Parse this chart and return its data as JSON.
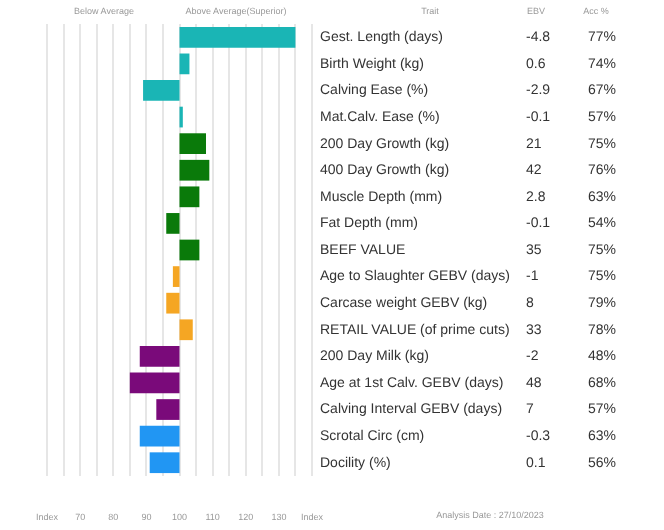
{
  "chart_data": {
    "type": "bar",
    "orientation": "horizontal",
    "legend": false,
    "grid": "x",
    "categories": [
      "Gest. Length (days)",
      "Birth Weight (kg)",
      "Calving Ease (%)",
      "Mat.Calv. Ease (%)",
      "200 Day Growth (kg)",
      "400 Day Growth (kg)",
      "Muscle Depth (mm)",
      "Fat Depth (mm)",
      "BEEF VALUE",
      "Age to Slaughter GEBV (days)",
      "Carcase weight GEBV (kg)",
      "RETAIL VALUE (of prime cuts)",
      "200 Day Milk (kg)",
      "Age at 1st Calv. GEBV (days)",
      "Calving Interval GEBV (days)",
      "Scrotal Circ (cm)",
      "Docility (%)"
    ],
    "base": [
      100,
      100,
      100,
      100,
      100,
      100,
      100,
      100,
      100,
      100,
      100,
      100,
      100,
      100,
      100,
      100,
      100
    ],
    "values": [
      35,
      3,
      -11,
      1,
      8,
      9,
      6,
      -4,
      6,
      -2,
      -4,
      4,
      -12,
      -15,
      -7,
      -12,
      -9
    ],
    "colors": [
      "#1ab5b5",
      "#1ab5b5",
      "#1ab5b5",
      "#1ab5b5",
      "#0a7a0a",
      "#0a7a0a",
      "#0a7a0a",
      "#0a7a0a",
      "#0a7a0a",
      "#f5a623",
      "#f5a623",
      "#f5a623",
      "#7a0a7a",
      "#7a0a7a",
      "#7a0a7a",
      "#2196f3",
      "#2196f3"
    ],
    "xlim": [
      60,
      140
    ],
    "xticks": [
      {
        "value": 60,
        "label": "Index"
      },
      {
        "value": 65,
        "label": null
      },
      70,
      {
        "value": 75,
        "label": null
      },
      80,
      {
        "value": 85,
        "label": null
      },
      90,
      {
        "value": 95,
        "label": null
      },
      100,
      {
        "value": 105,
        "label": null
      },
      110,
      {
        "value": 115,
        "label": null
      },
      120,
      {
        "value": 125,
        "label": null
      },
      130,
      {
        "value": 135,
        "label": null
      },
      {
        "value": 140,
        "label": "Index"
      }
    ],
    "annotations": [
      "Below Average",
      "Above Average(Superior)",
      "Trait",
      "EBV",
      "Acc %",
      "Analysis Date : 27/10/2023",
      "-4.8",
      "0.6",
      "-2.9",
      "-0.1",
      "21",
      "42",
      "2.8",
      "-0.1",
      "35",
      "-1",
      "8",
      "33",
      "-2",
      "48",
      "7",
      "-0.3",
      "0.1",
      "77%",
      "74%",
      "67%",
      "57%",
      "75%",
      "76%",
      "63%",
      "54%",
      "75%",
      "75%",
      "79%",
      "78%",
      "48%",
      "68%",
      "57%",
      "63%",
      "56%"
    ]
  }
}
